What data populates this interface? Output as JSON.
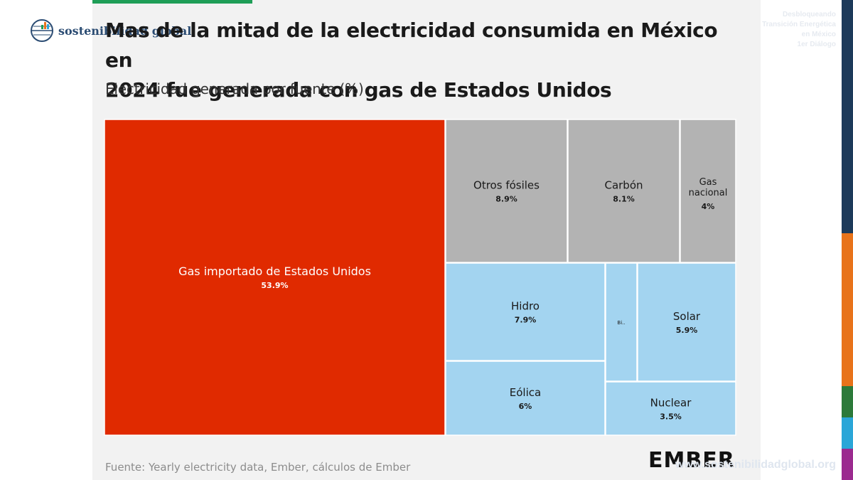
{
  "header": {
    "title_line1": "Mas de la mitad de la electricidad consumida en México en",
    "title_line2": "2024 fue generada con gas de Estados Unidos",
    "subtitle": "Electricidad generada por fuente (%)"
  },
  "logo": {
    "text": "sostenibilidad global"
  },
  "corner_text": [
    "Desbloqueando",
    "Transición Energética",
    "en México",
    "1er Diálogo"
  ],
  "footer": {
    "source": "Fuente: Yearly electricity data, Ember, cálculos de Ember",
    "brand": "EMBER",
    "url": "www.sostenibilidadglobal.org"
  },
  "colors": {
    "imported_gas": "#e02a00",
    "fossil": "#b3b3b3",
    "clean": "#a3d4f0",
    "panel": "#f2f2f2",
    "side_strip": [
      "#1d3a5a",
      "#e8731a",
      "#2c7a3a",
      "#2aa6d8",
      "#9b2a8f"
    ]
  },
  "chart_data": {
    "type": "treemap",
    "title": "Mas de la mitad de la electricidad consumida en México en 2024 fue generada con gas de Estados Unidos",
    "subtitle": "Electricidad generada por fuente (%)",
    "unit": "%",
    "items": [
      {
        "label": "Gas importado de Estados Unidos",
        "value_label": "53.9%",
        "value": 53.9,
        "group": "imported_gas"
      },
      {
        "label": "Otros fósiles",
        "value_label": "8.9%",
        "value": 8.9,
        "group": "fossil"
      },
      {
        "label": "Carbón",
        "value_label": "8.1%",
        "value": 8.1,
        "group": "fossil"
      },
      {
        "label": "Gas nacional",
        "value_label": "4%",
        "value": 4,
        "group": "fossil"
      },
      {
        "label": "Hidro",
        "value_label": "7.9%",
        "value": 7.9,
        "group": "clean"
      },
      {
        "label": "Eólica",
        "value_label": "6%",
        "value": 6,
        "group": "clean"
      },
      {
        "label": "Bi..",
        "value_label": "",
        "value": 1.7,
        "group": "clean"
      },
      {
        "label": "Solar",
        "value_label": "5.9%",
        "value": 5.9,
        "group": "clean"
      },
      {
        "label": "Nuclear",
        "value_label": "3.5%",
        "value": 3.5,
        "group": "clean"
      }
    ]
  }
}
